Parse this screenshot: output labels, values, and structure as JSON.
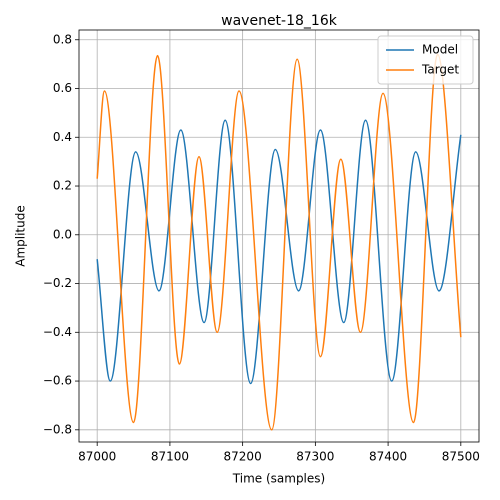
{
  "chart_data": {
    "type": "line",
    "title": "wavenet-18_16k",
    "xlabel": "Time (samples)",
    "ylabel": "Amplitude",
    "series": [
      {
        "name": "Model",
        "color": "#1f77b4",
        "x": [
          87000,
          87018,
          87053,
          87085,
          87115,
          87147,
          87176,
          87211,
          87245,
          87277,
          87307,
          87339,
          87369,
          87405,
          87438,
          87470,
          87500
        ],
        "values": [
          -0.1,
          -0.6,
          0.34,
          -0.23,
          0.43,
          -0.36,
          0.47,
          -0.61,
          0.35,
          -0.23,
          0.43,
          -0.36,
          0.47,
          -0.6,
          0.34,
          -0.23,
          0.41
        ]
      },
      {
        "name": "Target",
        "color": "#ff7f0e",
        "x": [
          87000,
          87010,
          87050,
          87083,
          87113,
          87140,
          87165,
          87195,
          87240,
          87275,
          87307,
          87335,
          87362,
          87393,
          87435,
          87468,
          87500
        ],
        "values": [
          0.23,
          0.59,
          -0.77,
          0.735,
          -0.53,
          0.32,
          -0.4,
          0.59,
          -0.8,
          0.72,
          -0.5,
          0.31,
          -0.4,
          0.58,
          -0.77,
          0.74,
          -0.42
        ]
      }
    ],
    "xlim": [
      86975,
      87525
    ],
    "ylim": [
      -0.85,
      0.84
    ],
    "xticks": [
      87000,
      87100,
      87200,
      87300,
      87400,
      87500
    ],
    "yticks": [
      {
        "value": -0.8,
        "label": "−0.8"
      },
      {
        "value": -0.6,
        "label": "−0.6"
      },
      {
        "value": -0.4,
        "label": "−0.4"
      },
      {
        "value": -0.2,
        "label": "−0.2"
      },
      {
        "value": 0.0,
        "label": "0.0"
      },
      0.2,
      0.4,
      0.6,
      0.8
    ],
    "grid": true,
    "legend": "upper right"
  }
}
